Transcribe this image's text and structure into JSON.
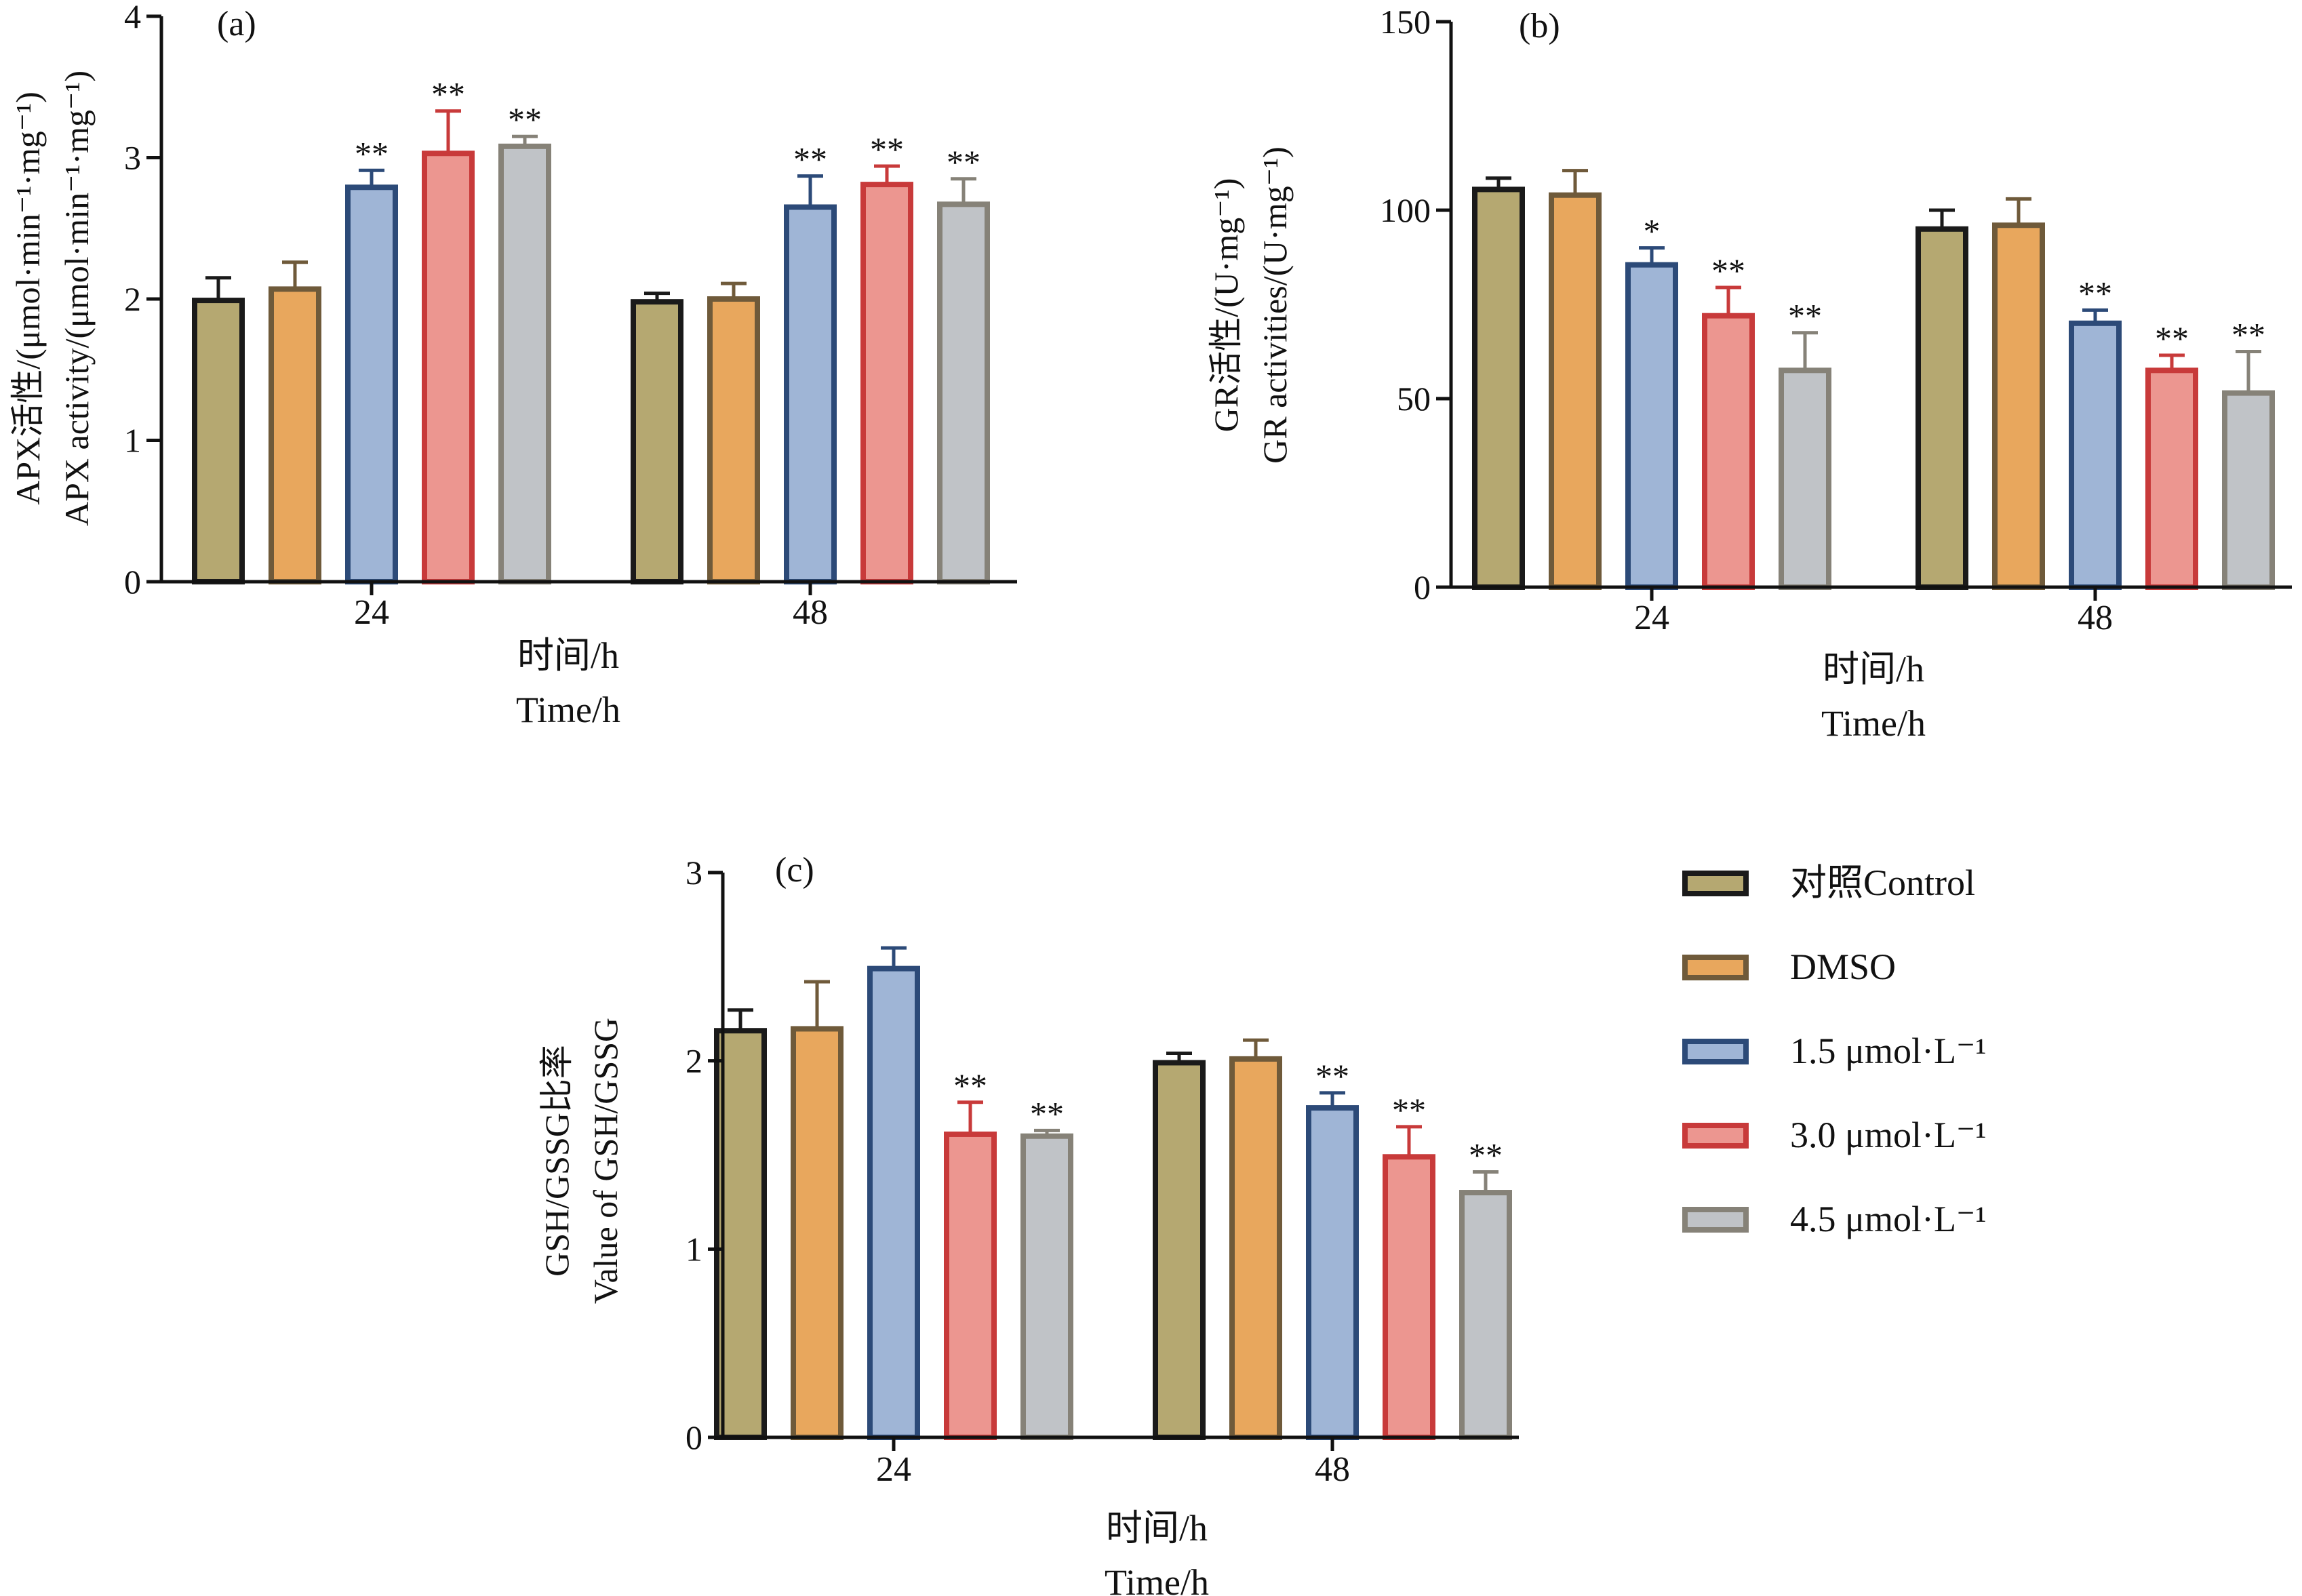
{
  "legend": {
    "items": [
      {
        "label": "对照Control",
        "fill": "#b5a871",
        "stroke": "#1a1a1a"
      },
      {
        "label": "DMSO",
        "fill": "#e8a75d",
        "stroke": "#6f5a3a"
      },
      {
        "label": "1.5 μmol·L⁻¹",
        "fill": "#9fb5d6",
        "stroke": "#2c4a78"
      },
      {
        "label": "3.0 μmol·L⁻¹",
        "fill": "#ec9690",
        "stroke": "#c83a3a"
      },
      {
        "label": "4.5 μmol·L⁻¹",
        "fill": "#c0c3c7",
        "stroke": "#868278"
      }
    ]
  },
  "chart_data": [
    {
      "id": "a",
      "type": "bar",
      "panel_label": "(a)",
      "ylabel_lines": [
        "APX活性/(μmol·min⁻¹·mg⁻¹)",
        "APX activity/(μmol·min⁻¹·mg⁻¹)"
      ],
      "xlabel_lines": [
        "时间/h",
        "Time/h"
      ],
      "categories": [
        "24",
        "48"
      ],
      "ylim": [
        0,
        4
      ],
      "yticks": [
        0,
        1,
        2,
        3,
        4
      ],
      "series": [
        {
          "name": "对照Control",
          "values": [
            1.99,
            1.98
          ],
          "errors": [
            0.16,
            0.06
          ],
          "sig": [
            "",
            ""
          ]
        },
        {
          "name": "DMSO",
          "values": [
            2.07,
            2.0
          ],
          "errors": [
            0.19,
            0.11
          ],
          "sig": [
            "",
            ""
          ]
        },
        {
          "name": "1.5 μmol·L⁻¹",
          "values": [
            2.79,
            2.65
          ],
          "errors": [
            0.12,
            0.22
          ],
          "sig": [
            "**",
            "**"
          ]
        },
        {
          "name": "3.0 μmol·L⁻¹",
          "values": [
            3.03,
            2.81
          ],
          "errors": [
            0.3,
            0.13
          ],
          "sig": [
            "**",
            "**"
          ]
        },
        {
          "name": "4.5 μmol·L⁻¹",
          "values": [
            3.08,
            2.67
          ],
          "errors": [
            0.07,
            0.18
          ],
          "sig": [
            "**",
            "**"
          ]
        }
      ]
    },
    {
      "id": "b",
      "type": "bar",
      "panel_label": "(b)",
      "ylabel_lines": [
        "GR活性/(U·mg⁻¹)",
        "GR activities/(U·mg⁻¹)"
      ],
      "xlabel_lines": [
        "时间/h",
        "Time/h"
      ],
      "categories": [
        "24",
        "48"
      ],
      "ylim": [
        0,
        150
      ],
      "yticks": [
        0,
        50,
        100,
        150
      ],
      "series": [
        {
          "name": "对照Control",
          "values": [
            105.5,
            95.0
          ],
          "errors": [
            3.0,
            5.0
          ],
          "sig": [
            "",
            ""
          ]
        },
        {
          "name": "DMSO",
          "values": [
            104.0,
            96.0
          ],
          "errors": [
            6.5,
            7.0
          ],
          "sig": [
            "",
            ""
          ]
        },
        {
          "name": "1.5 μmol·L⁻¹",
          "values": [
            85.5,
            70.0
          ],
          "errors": [
            4.5,
            3.5
          ],
          "sig": [
            "*",
            "**"
          ]
        },
        {
          "name": "3.0 μmol·L⁻¹",
          "values": [
            72.0,
            57.5
          ],
          "errors": [
            7.5,
            4.0
          ],
          "sig": [
            "**",
            "**"
          ]
        },
        {
          "name": "4.5 μmol·L⁻¹",
          "values": [
            57.5,
            51.5
          ],
          "errors": [
            10.0,
            11.0
          ],
          "sig": [
            "**",
            "**"
          ]
        }
      ]
    },
    {
      "id": "c",
      "type": "bar",
      "panel_label": "(c)",
      "ylabel_lines": [
        "GSH/GSSG比率",
        "Value of GSH/GSSG"
      ],
      "xlabel_lines": [
        "时间/h",
        "Time/h"
      ],
      "categories": [
        "24",
        "48"
      ],
      "ylim": [
        0,
        3
      ],
      "yticks": [
        0,
        1,
        2,
        3
      ],
      "series": [
        {
          "name": "对照Control",
          "values": [
            2.16,
            1.99
          ],
          "errors": [
            0.11,
            0.05
          ],
          "sig": [
            "",
            ""
          ]
        },
        {
          "name": "DMSO",
          "values": [
            2.17,
            2.01
          ],
          "errors": [
            0.25,
            0.1
          ],
          "sig": [
            "",
            ""
          ]
        },
        {
          "name": "1.5 μmol·L⁻¹",
          "values": [
            2.49,
            1.75
          ],
          "errors": [
            0.11,
            0.08
          ],
          "sig": [
            "",
            "**"
          ]
        },
        {
          "name": "3.0 μmol·L⁻¹",
          "values": [
            1.61,
            1.49
          ],
          "errors": [
            0.17,
            0.16
          ],
          "sig": [
            "**",
            "**"
          ]
        },
        {
          "name": "4.5 μmol·L⁻¹",
          "values": [
            1.6,
            1.3
          ],
          "errors": [
            0.03,
            0.11
          ],
          "sig": [
            "**",
            "**"
          ]
        }
      ]
    }
  ]
}
